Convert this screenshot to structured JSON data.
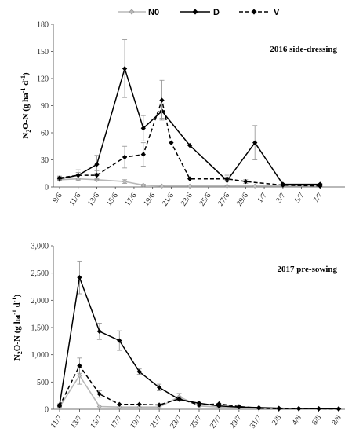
{
  "legend": {
    "items": [
      {
        "name": "N0",
        "color": "#b8b8b8",
        "dash": "solid",
        "marker": "diamond-gray"
      },
      {
        "name": "D",
        "color": "#000000",
        "dash": "solid",
        "marker": "diamond"
      },
      {
        "name": "V",
        "color": "#000000",
        "dash": "dashed",
        "marker": "diamond"
      }
    ]
  },
  "chart_data": [
    {
      "type": "line",
      "title": "2016 side-dressing",
      "ylabel": "N2O-N (g ha-1 d-1)",
      "ylim": [
        0,
        180
      ],
      "yticks": [
        "0",
        "30",
        "60",
        "90",
        "120",
        "150",
        "180"
      ],
      "ytick_values": [
        0,
        30,
        60,
        90,
        120,
        150,
        180
      ],
      "xlim": [
        0,
        30
      ],
      "xtick_labels": [
        "9/6",
        "11/6",
        "13/6",
        "15/6",
        "17/6",
        "19/6",
        "21/6",
        "23/6",
        "25/6",
        "27/6",
        "29/6",
        "1/7",
        "3/7",
        "5/7",
        "7/7"
      ],
      "xtick_values": [
        0,
        2,
        4,
        6,
        8,
        10,
        12,
        14,
        16,
        18,
        20,
        22,
        24,
        26,
        28
      ],
      "grid": false,
      "series": [
        {
          "name": "N0",
          "x": [
            0,
            2,
            4,
            7,
            9,
            11,
            14,
            18,
            21,
            24,
            28
          ],
          "y": [
            8,
            9,
            8,
            6,
            2,
            1,
            1,
            1,
            1,
            1,
            1
          ],
          "err": [
            1,
            1,
            1,
            2,
            1,
            0,
            0,
            0,
            0,
            0,
            0
          ]
        },
        {
          "name": "D",
          "x": [
            0,
            2,
            4,
            7,
            9,
            11,
            14,
            18,
            21,
            24,
            28
          ],
          "y": [
            9,
            13,
            25,
            131,
            65,
            84,
            46,
            7,
            49,
            3,
            3
          ],
          "err": [
            2,
            3,
            10,
            32,
            14,
            8,
            0,
            6,
            19,
            1,
            1
          ]
        },
        {
          "name": "V",
          "x": [
            0,
            2,
            4,
            7,
            9,
            11,
            12,
            14,
            18,
            20,
            24,
            28
          ],
          "y": [
            10,
            13,
            13,
            33,
            36,
            96,
            49,
            9,
            9,
            6,
            2,
            1
          ],
          "err": [
            2,
            6,
            5,
            12,
            13,
            22,
            0,
            0,
            2,
            2,
            0,
            0
          ]
        }
      ]
    },
    {
      "type": "line",
      "title": "2017 pre-sowing",
      "ylabel": "N2O-N (g ha-1 d-1)",
      "ylim": [
        0,
        3000
      ],
      "yticks": [
        "0",
        "500",
        "1,000",
        "1,500",
        "2,000",
        "2,500",
        "3,000"
      ],
      "ytick_values": [
        0,
        500,
        1000,
        1500,
        2000,
        2500,
        3000
      ],
      "xlim": [
        0,
        28
      ],
      "xtick_labels": [
        "11/7",
        "13/7",
        "15/7",
        "17/7",
        "19/7",
        "21/7",
        "23/7",
        "25/7",
        "27/7",
        "29/7",
        "31/7",
        "2/8",
        "4/8",
        "6/8",
        "8/8"
      ],
      "xtick_values": [
        0,
        2,
        4,
        6,
        8,
        10,
        12,
        14,
        16,
        18,
        20,
        22,
        24,
        26,
        28
      ],
      "grid": false,
      "series": [
        {
          "name": "N0",
          "x": [
            0,
            2,
            4,
            6,
            8,
            10,
            12,
            14,
            16,
            18,
            20,
            22,
            24,
            26,
            28
          ],
          "y": [
            40,
            620,
            50,
            40,
            40,
            40,
            230,
            60,
            40,
            30,
            20,
            15,
            10,
            10,
            10
          ],
          "err": [
            10,
            160,
            0,
            0,
            0,
            0,
            60,
            0,
            0,
            0,
            0,
            0,
            0,
            0,
            0
          ]
        },
        {
          "name": "D",
          "x": [
            0,
            2,
            4,
            6,
            8,
            10,
            12,
            14,
            16,
            18,
            20,
            22,
            24,
            26,
            28
          ],
          "y": [
            80,
            2420,
            1430,
            1260,
            690,
            400,
            180,
            110,
            60,
            40,
            30,
            20,
            15,
            10,
            10
          ],
          "err": [
            20,
            300,
            150,
            180,
            50,
            60,
            20,
            20,
            0,
            0,
            0,
            0,
            0,
            0,
            0
          ]
        },
        {
          "name": "V",
          "x": [
            0,
            2,
            4,
            6,
            8,
            10,
            12,
            14,
            16,
            18,
            20,
            22,
            24,
            26,
            28
          ],
          "y": [
            60,
            800,
            280,
            90,
            90,
            80,
            190,
            80,
            100,
            50,
            20,
            10,
            10,
            10,
            5
          ],
          "err": [
            10,
            140,
            60,
            0,
            0,
            0,
            40,
            0,
            0,
            0,
            0,
            0,
            0,
            0,
            0
          ]
        }
      ]
    }
  ]
}
